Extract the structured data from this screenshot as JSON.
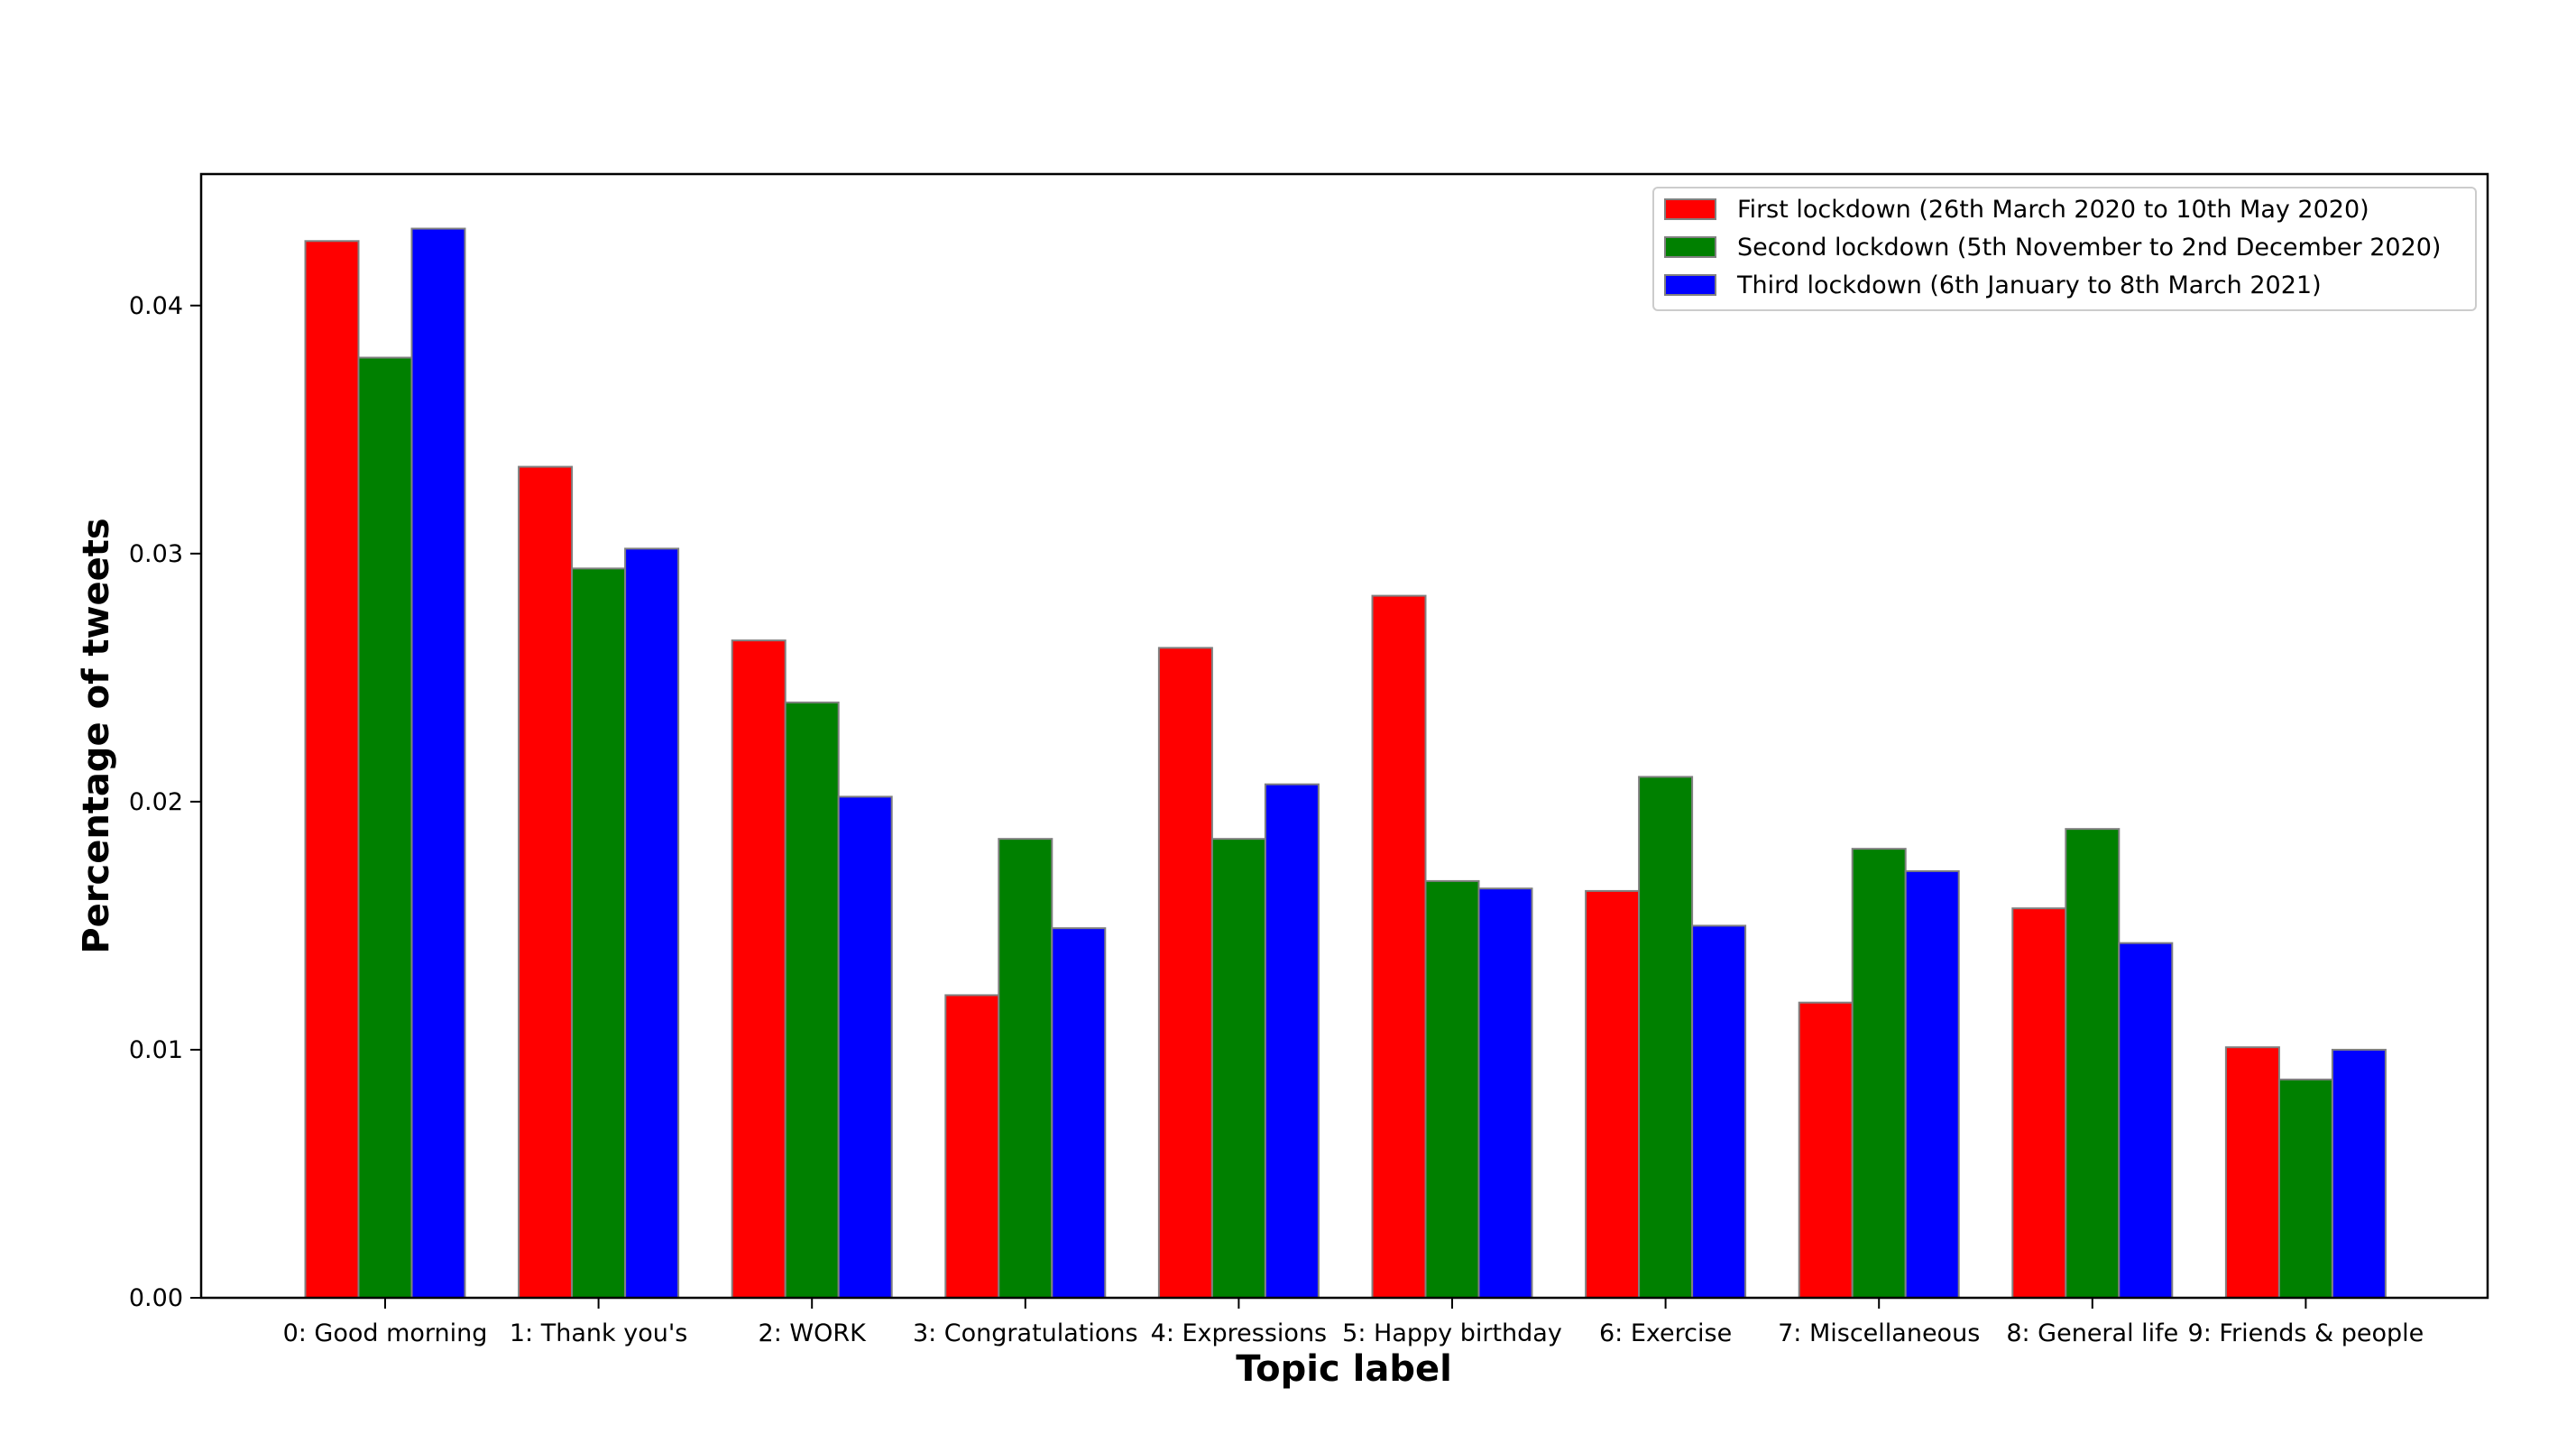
{
  "chart_data": {
    "type": "bar",
    "title": "",
    "xlabel": "Topic label",
    "ylabel": "Percentage of tweets",
    "ylim": [
      0,
      0.0453
    ],
    "yticks": [
      "0.00",
      "0.01",
      "0.02",
      "0.03",
      "0.04"
    ],
    "grid": false,
    "legend_position": "top-right",
    "categories": [
      "0: Good morning",
      "1: Thank you's",
      "2: WORK",
      "3: Congratulations",
      "4: Expressions",
      "5: Happy birthday",
      "6: Exercise",
      "7: Miscellaneous",
      "8: General life",
      "9: Friends & people"
    ],
    "series": [
      {
        "name": "First lockdown (26th March 2020 to 10th May 2020)",
        "color": "#ff0000",
        "values": [
          0.0426,
          0.0335,
          0.0265,
          0.0122,
          0.0262,
          0.0283,
          0.0164,
          0.0119,
          0.0157,
          0.0101
        ]
      },
      {
        "name": "Second lockdown (5th November to 2nd December 2020)",
        "color": "#008000",
        "values": [
          0.0379,
          0.0294,
          0.024,
          0.0185,
          0.0185,
          0.0168,
          0.021,
          0.0181,
          0.0189,
          0.0088
        ]
      },
      {
        "name": "Third lockdown (6th January to 8th March 2021)",
        "color": "#0000ff",
        "values": [
          0.0431,
          0.0302,
          0.0202,
          0.0149,
          0.0207,
          0.0165,
          0.015,
          0.0172,
          0.0143,
          0.01
        ]
      }
    ]
  }
}
